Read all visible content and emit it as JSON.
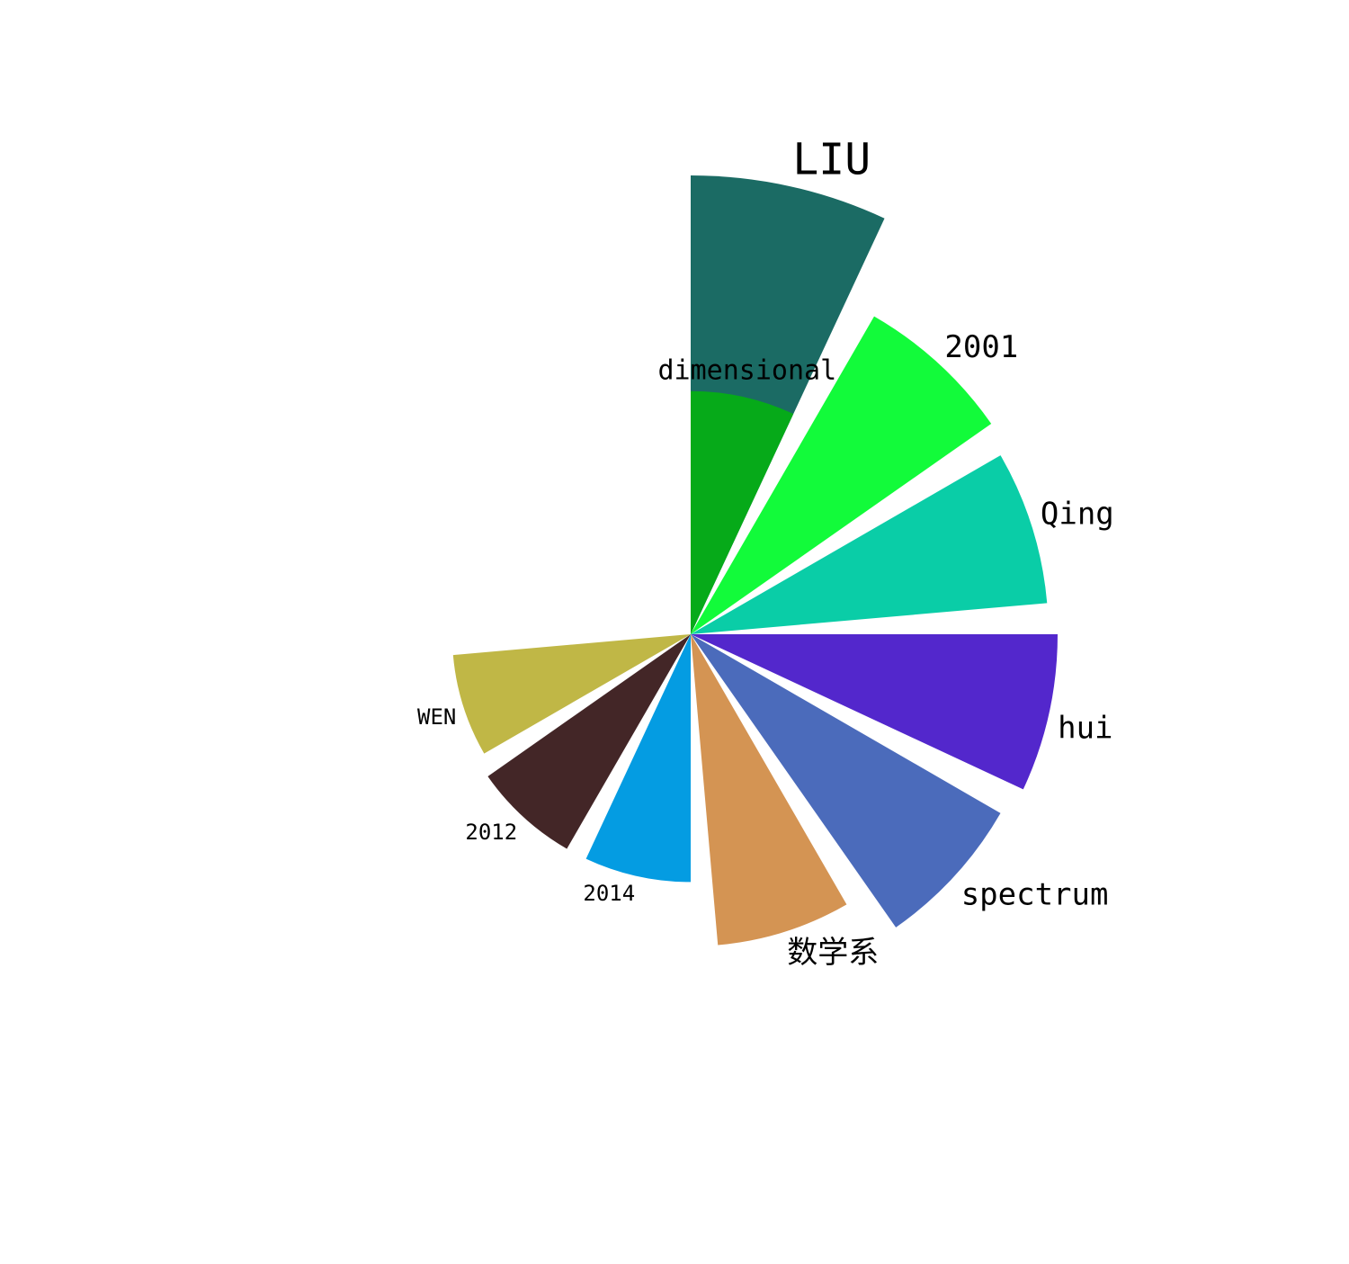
{
  "chart_data": {
    "type": "polar-bar",
    "title": "",
    "categories": [
      "LIU",
      "2001",
      "Qing",
      "hui",
      "spectrum",
      "数学系",
      "2014",
      "2012",
      "WEN"
    ],
    "values": [
      10.0,
      8.0,
      7.8,
      8.0,
      7.8,
      6.8,
      5.4,
      5.4,
      5.2
    ],
    "colors": [
      "#1b6b64",
      "#12fb3a",
      "#0acda7",
      "#5327cc",
      "#4b6bbb",
      "#d49453",
      "#049ce2",
      "#432627",
      "#c0b746"
    ],
    "inner_segment": {
      "label": "dimensional",
      "value": 5.3,
      "color": "#06aa19"
    },
    "angle_start_deg": 0,
    "angle_step_deg": 30,
    "wedge_width_deg": 25,
    "direction": "clockwise-from-top",
    "grid": false,
    "legend": "none"
  }
}
